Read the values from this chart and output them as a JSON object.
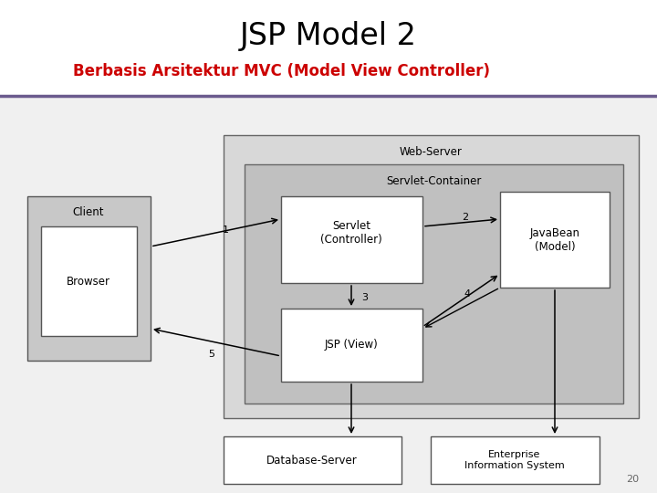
{
  "title": "JSP Model 2",
  "subtitle": "Berbasis Arsitektur MVC (Model View Controller)",
  "title_color": "#000000",
  "subtitle_color": "#cc0000",
  "line_color": "#6b5b8e",
  "bg_color": "#ffffff",
  "diagram_bg": "#e8e8e8",
  "page_number": "20",
  "gray_light": "#d4d4d4",
  "gray_mid": "#c0c0c0",
  "white": "#ffffff",
  "edge_color": "#555555"
}
